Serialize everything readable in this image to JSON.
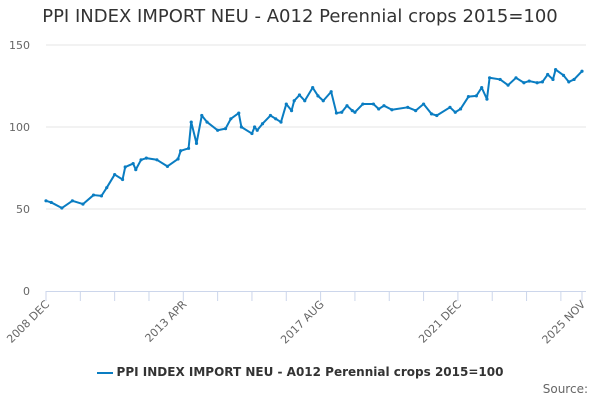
{
  "chart_data": {
    "type": "line",
    "title": "PPI INDEX IMPORT NEU - A012 Perennial crops 2015=100",
    "xlabel": "",
    "ylabel": "",
    "ylim": [
      0,
      150
    ],
    "yticks": [
      "0",
      "50",
      "100",
      "150"
    ],
    "xlim": [
      "2008-12",
      "2025-11"
    ],
    "xtick_labels": [
      {
        "date": "2008-12",
        "label": "2008 DEC"
      },
      {
        "date": "2013-04",
        "label": "2013 APR"
      },
      {
        "date": "2017-08",
        "label": "2017 AUG"
      },
      {
        "date": "2021-12",
        "label": "2021 DEC"
      },
      {
        "date": "2025-11",
        "label": "2025 NOV"
      }
    ],
    "grid": "horizontal",
    "legend_position": "bottom",
    "color": "#0a7dc2",
    "series": [
      {
        "name": "PPI INDEX IMPORT NEU - A012 Perennial crops 2015=100",
        "x": [
          "2008-12",
          "2009-02",
          "2009-06",
          "2009-10",
          "2010-02",
          "2010-06",
          "2010-09",
          "2010-11",
          "2011-02",
          "2011-05",
          "2011-06",
          "2011-09",
          "2011-10",
          "2011-12",
          "2012-02",
          "2012-06",
          "2012-10",
          "2013-02",
          "2013-03",
          "2013-06",
          "2013-07",
          "2013-09",
          "2013-11",
          "2014-01",
          "2014-05",
          "2014-08",
          "2014-10",
          "2015-01",
          "2015-02",
          "2015-06",
          "2015-07",
          "2015-08",
          "2015-10",
          "2016-01",
          "2016-03",
          "2016-05",
          "2016-07",
          "2016-09",
          "2016-10",
          "2016-12",
          "2017-02",
          "2017-05",
          "2017-07",
          "2017-09",
          "2017-12",
          "2018-02",
          "2018-04",
          "2018-06",
          "2018-08",
          "2018-09",
          "2018-12",
          "2019-04",
          "2019-06",
          "2019-08",
          "2019-11",
          "2020-05",
          "2020-08",
          "2020-11",
          "2021-02",
          "2021-04",
          "2021-09",
          "2021-11",
          "2022-01",
          "2022-04",
          "2022-07",
          "2022-09",
          "2022-11",
          "2022-12",
          "2023-04",
          "2023-07",
          "2023-10",
          "2024-01",
          "2024-03",
          "2024-06",
          "2024-08",
          "2024-10",
          "2024-12",
          "2025-01",
          "2025-04",
          "2025-06",
          "2025-08",
          "2025-11"
        ],
        "values": [
          55,
          54,
          50.6,
          55,
          53,
          58.5,
          58,
          63,
          71,
          68,
          75.6,
          77.7,
          74,
          80,
          81,
          80,
          76,
          80.5,
          85.5,
          87,
          103,
          90,
          107,
          103,
          98,
          99,
          105,
          108.5,
          100,
          96,
          100,
          98,
          102,
          107,
          105,
          103,
          114,
          110,
          116,
          119.5,
          116,
          124,
          119,
          116,
          121.5,
          108.5,
          109,
          113,
          110,
          109,
          114,
          114,
          111,
          113,
          110.5,
          112,
          110,
          114,
          108,
          107,
          112,
          109,
          111,
          118.5,
          119,
          124,
          117,
          130,
          129,
          125.5,
          130,
          127,
          128,
          127,
          127.5,
          132,
          129,
          135,
          131.5,
          127.5,
          129,
          134
        ]
      }
    ]
  },
  "source_label": "Source:"
}
